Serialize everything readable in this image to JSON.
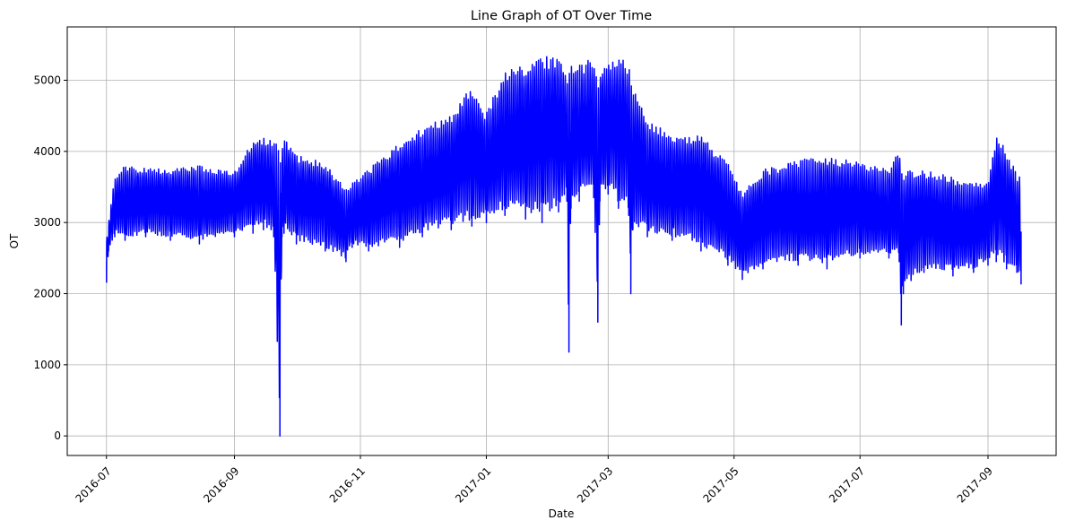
{
  "chart_data": {
    "type": "line",
    "title": "Line Graph of OT Over Time",
    "xlabel": "Date",
    "ylabel": "OT",
    "x_axis_type": "date",
    "xlim": [
      "2016-06-12",
      "2017-10-04"
    ],
    "ylim": [
      -275,
      5750
    ],
    "grid": true,
    "legend": "none",
    "line_color": "#0000ff",
    "x_ticks": [
      {
        "value": "2016-07-01",
        "label": "2016-07"
      },
      {
        "value": "2016-09-01",
        "label": "2016-09"
      },
      {
        "value": "2016-11-01",
        "label": "2016-11"
      },
      {
        "value": "2017-01-01",
        "label": "2017-01"
      },
      {
        "value": "2017-03-01",
        "label": "2017-03"
      },
      {
        "value": "2017-05-01",
        "label": "2017-05"
      },
      {
        "value": "2017-07-01",
        "label": "2017-07"
      },
      {
        "value": "2017-09-01",
        "label": "2017-09"
      }
    ],
    "y_ticks": [
      0,
      1000,
      2000,
      3000,
      4000,
      5000
    ],
    "series": [
      {
        "color": "#0000ff",
        "x": [
          "2016-07-01",
          "2016-07-02",
          "2016-07-05",
          "2016-07-10",
          "2016-07-20",
          "2016-08-01",
          "2016-08-15",
          "2016-09-01",
          "2016-09-10",
          "2016-09-15",
          "2016-09-20",
          "2016-09-23",
          "2016-09-24",
          "2016-09-25",
          "2016-10-01",
          "2016-10-15",
          "2016-10-25",
          "2016-10-28",
          "2016-11-05",
          "2016-11-20",
          "2016-12-01",
          "2016-12-15",
          "2016-12-25",
          "2017-01-01",
          "2017-01-10",
          "2017-01-20",
          "2017-01-28",
          "2017-02-05",
          "2017-02-09",
          "2017-02-10",
          "2017-02-11",
          "2017-02-15",
          "2017-02-22",
          "2017-02-24",
          "2017-02-25",
          "2017-03-01",
          "2017-03-06",
          "2017-03-11",
          "2017-03-12",
          "2017-03-13",
          "2017-03-20",
          "2017-04-01",
          "2017-04-15",
          "2017-04-28",
          "2017-05-05",
          "2017-05-15",
          "2017-06-01",
          "2017-06-15",
          "2017-07-01",
          "2017-07-15",
          "2017-07-20",
          "2017-07-21",
          "2017-07-22",
          "2017-08-01",
          "2017-08-15",
          "2017-08-25",
          "2017-09-01",
          "2017-09-05",
          "2017-09-10",
          "2017-09-15",
          "2017-09-17"
        ],
        "min": [
          2160,
          2600,
          2800,
          2750,
          2800,
          2750,
          2700,
          2800,
          2850,
          2900,
          2800,
          0,
          2800,
          2850,
          2700,
          2600,
          2450,
          2650,
          2600,
          2650,
          2800,
          2900,
          2950,
          3000,
          3100,
          3050,
          3000,
          3150,
          3300,
          1180,
          3200,
          3300,
          3350,
          1600,
          3300,
          3400,
          3200,
          3100,
          2000,
          2900,
          2800,
          2750,
          2600,
          2400,
          2200,
          2350,
          2400,
          2350,
          2500,
          2500,
          2450,
          1560,
          2000,
          2300,
          2250,
          2300,
          2400,
          2450,
          2350,
          2300,
          2130
        ],
        "max": [
          2800,
          3000,
          3700,
          3850,
          3800,
          3800,
          3850,
          3750,
          4200,
          4250,
          4200,
          4250,
          4100,
          4280,
          4000,
          3900,
          3500,
          3600,
          3800,
          4200,
          4400,
          4600,
          5000,
          4600,
          5250,
          5300,
          5420,
          5450,
          5150,
          5300,
          5350,
          5300,
          5400,
          5100,
          5250,
          5300,
          5450,
          5300,
          5100,
          5000,
          4500,
          4300,
          4300,
          3900,
          3500,
          3800,
          3950,
          4000,
          3900,
          3800,
          4180,
          3850,
          3800,
          3800,
          3700,
          3600,
          3650,
          4350,
          4050,
          3750,
          3700
        ]
      }
    ]
  }
}
